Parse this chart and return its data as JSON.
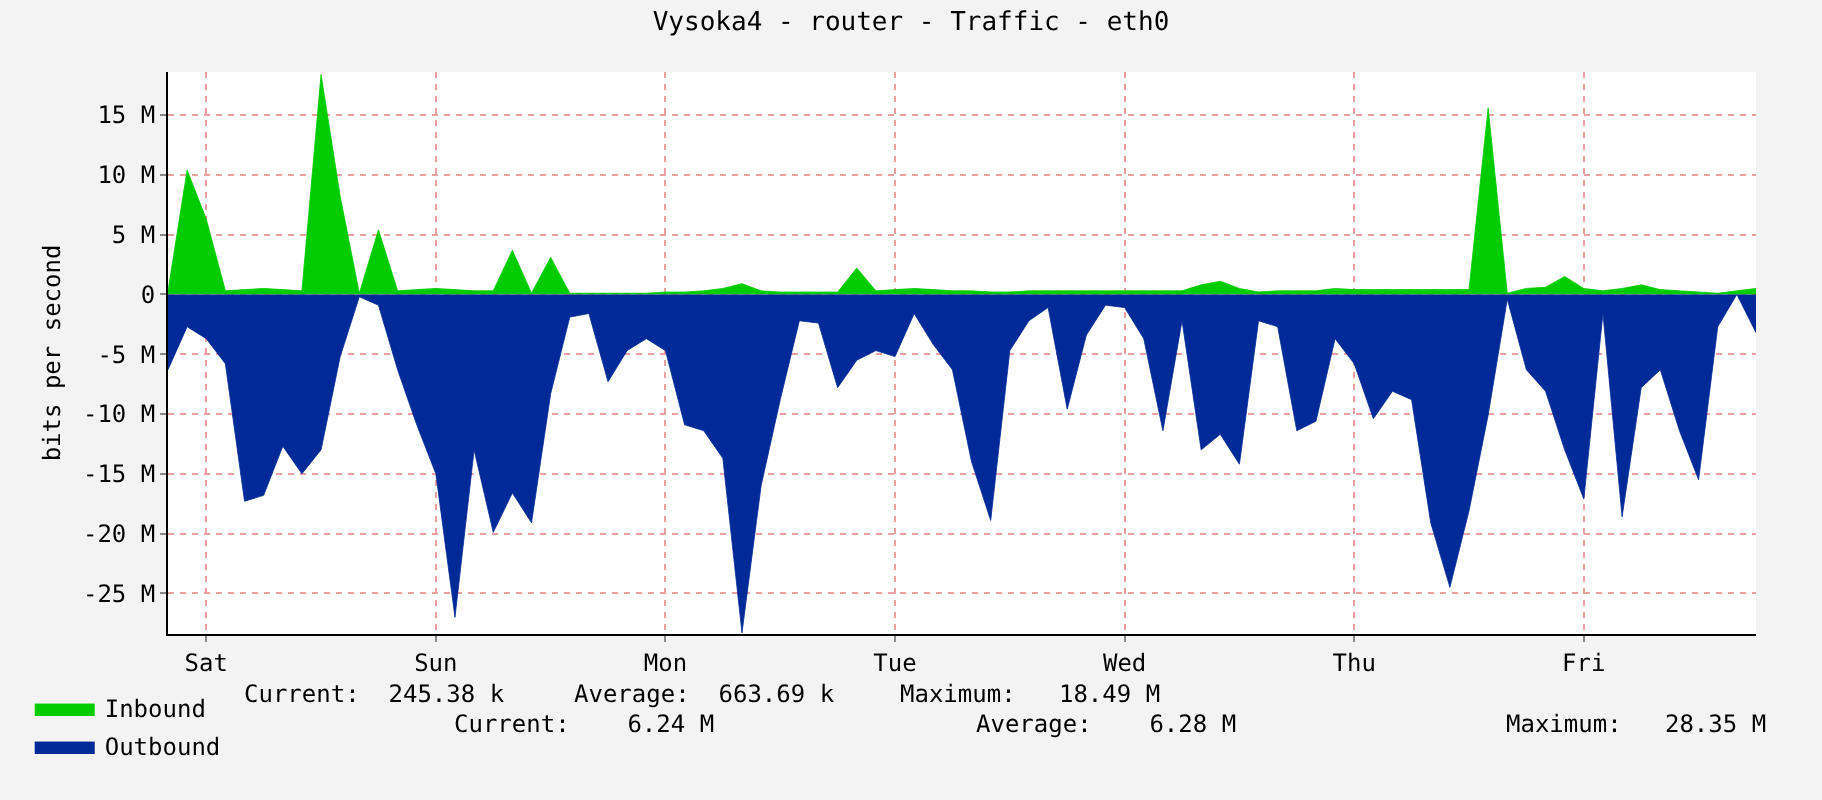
{
  "chart_data": {
    "type": "area",
    "title": "Vysoka4 - router - Traffic - eth0",
    "ylabel": "bits per second",
    "categories": [
      null,
      null,
      "Sat",
      null,
      null,
      null,
      null,
      null,
      null,
      null,
      null,
      null,
      null,
      null,
      "Sun",
      null,
      null,
      null,
      null,
      null,
      null,
      null,
      null,
      null,
      null,
      null,
      "Mon",
      null,
      null,
      null,
      null,
      null,
      null,
      null,
      null,
      null,
      null,
      null,
      "Tue",
      null,
      null,
      null,
      null,
      null,
      null,
      null,
      null,
      null,
      null,
      null,
      "Wed",
      null,
      null,
      null,
      null,
      null,
      null,
      null,
      null,
      null,
      null,
      null,
      "Thu",
      null,
      null,
      null,
      null,
      null,
      null,
      null,
      null,
      null,
      null,
      null,
      "Fri",
      null,
      null,
      null,
      null,
      null,
      null,
      null,
      null,
      null
    ],
    "ylim": [
      -28.4,
      18.6
    ],
    "yticks": [
      {
        "value": 15,
        "label": "15 M"
      },
      {
        "value": 10,
        "label": "10 M"
      },
      {
        "value": 5,
        "label": "5 M"
      },
      0,
      {
        "value": -5,
        "label": "-5 M"
      },
      {
        "value": -10,
        "label": "-10 M"
      },
      {
        "value": -15,
        "label": "-15 M"
      },
      {
        "value": -20,
        "label": "-20 M"
      },
      {
        "value": -25,
        "label": "-25 M"
      }
    ],
    "grid": true,
    "legend": "bottom left",
    "annotations": [
      "Current:  245.38 k",
      "Average:  663.69 k",
      "Maximum:   18.49 M",
      "Current:    6.24 M",
      "Average:    6.28 M",
      "Maximum:   28.35 M"
    ],
    "series": [
      {
        "name": "Inbound",
        "color": "#00cc00",
        "values": [
          0.3,
          10.4,
          6.3,
          0.3,
          0.4,
          0.5,
          0.4,
          0.3,
          18.4,
          8.2,
          0.1,
          5.4,
          0.3,
          0.4,
          0.5,
          0.4,
          0.3,
          0.3,
          3.7,
          0.1,
          3.1,
          0.1,
          0.1,
          0.1,
          0.1,
          0.1,
          0.2,
          0.2,
          0.3,
          0.5,
          0.9,
          0.3,
          0.2,
          0.2,
          0.2,
          0.2,
          2.2,
          0.3,
          0.4,
          0.5,
          0.4,
          0.3,
          0.3,
          0.2,
          0.2,
          0.3,
          0.3,
          0.3,
          0.3,
          0.3,
          0.3,
          0.3,
          0.3,
          0.3,
          0.8,
          1.1,
          0.5,
          0.2,
          0.3,
          0.3,
          0.3,
          0.5,
          0.4,
          0.4,
          0.4,
          0.4,
          0.4,
          0.4,
          0.4,
          15.6,
          0.1,
          0.5,
          0.6,
          1.5,
          0.5,
          0.3,
          0.5,
          0.8,
          0.4,
          0.3,
          0.2,
          0.1,
          0.3,
          0.5
        ]
      },
      {
        "name": "Outbound",
        "color": "#002a97",
        "values": [
          -6.3,
          -2.7,
          -3.7,
          -5.8,
          -17.3,
          -16.8,
          -12.7,
          -15,
          -13,
          -5.2,
          -0.2,
          -0.9,
          -6.3,
          -10.9,
          -15,
          -27,
          -13,
          -19.9,
          -16.6,
          -19.1,
          -8.3,
          -1.9,
          -1.6,
          -7.3,
          -4.7,
          -3.7,
          -4.7,
          -10.9,
          -11.4,
          -13.7,
          -28.3,
          -16,
          -8.8,
          -2.2,
          -2.4,
          -7.8,
          -5.5,
          -4.7,
          -5.2,
          -1.6,
          -4.2,
          -6.3,
          -14,
          -18.9,
          -4.7,
          -2.2,
          -1.1,
          -9.6,
          -3.4,
          -0.9,
          -1.1,
          -3.7,
          -11.4,
          -2.2,
          -13,
          -11.7,
          -14.2,
          -2.2,
          -2.7,
          -11.4,
          -10.6,
          -3.7,
          -5.8,
          -10.4,
          -8.1,
          -8.8,
          -19.1,
          -24.5,
          -18.1,
          -10.1,
          -0.4,
          -6.3,
          -8.1,
          -13,
          -17.1,
          -1.6,
          -18.6,
          -7.8,
          -6.3,
          -11.4,
          -15.5,
          -2.7,
          0,
          -3.2
        ]
      }
    ]
  }
}
